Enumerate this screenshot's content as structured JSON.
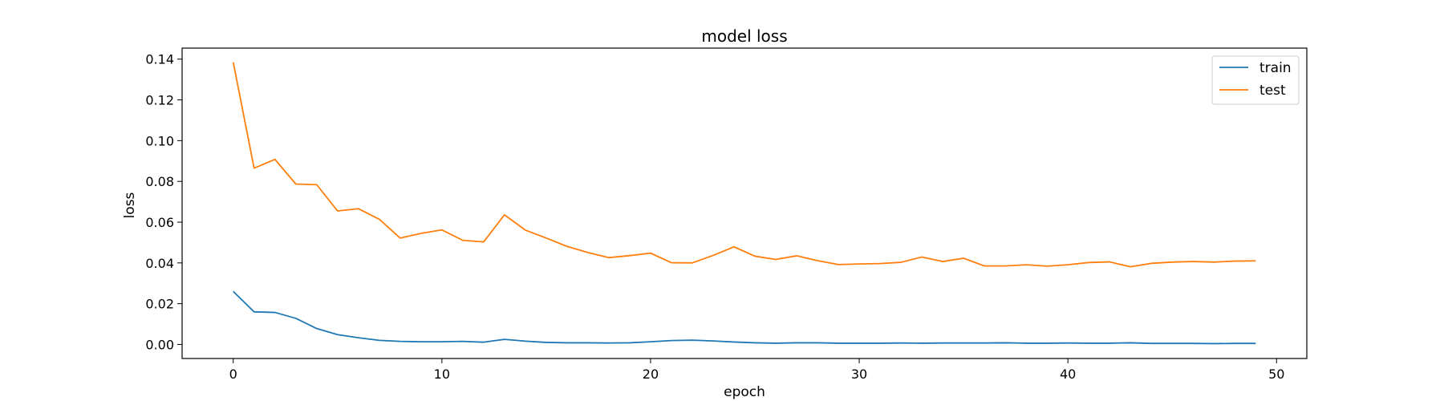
{
  "chart_data": {
    "type": "line",
    "title": "model loss",
    "xlabel": "epoch",
    "ylabel": "loss",
    "xlim": [
      -2.45,
      51.45
    ],
    "ylim": [
      -0.0069,
      0.1454
    ],
    "x_ticks": [
      0,
      10,
      20,
      30,
      40,
      50
    ],
    "y_ticks": [
      0.0,
      0.02,
      0.04,
      0.06,
      0.08,
      0.1,
      0.12,
      0.14
    ],
    "x_tick_labels": [
      "0",
      "10",
      "20",
      "30",
      "40",
      "50"
    ],
    "y_tick_labels": [
      "0.00",
      "0.02",
      "0.04",
      "0.06",
      "0.08",
      "0.10",
      "0.12",
      "0.14"
    ],
    "grid": false,
    "legend_position": "top-right",
    "series": [
      {
        "name": "train",
        "color": "#1f77b4",
        "x": [
          0,
          1,
          2,
          3,
          4,
          5,
          6,
          7,
          8,
          9,
          10,
          11,
          12,
          13,
          14,
          15,
          16,
          17,
          18,
          19,
          20,
          21,
          22,
          23,
          24,
          25,
          26,
          27,
          28,
          29,
          30,
          31,
          32,
          33,
          34,
          35,
          36,
          37,
          38,
          39,
          40,
          41,
          42,
          43,
          44,
          45,
          46,
          47,
          48,
          49
        ],
        "values": [
          0.026,
          0.016,
          0.0157,
          0.0128,
          0.0078,
          0.0048,
          0.0033,
          0.002,
          0.0015,
          0.0013,
          0.0013,
          0.0015,
          0.0011,
          0.0025,
          0.0016,
          0.001,
          0.0008,
          0.0008,
          0.0007,
          0.0008,
          0.0013,
          0.0019,
          0.0021,
          0.0017,
          0.0012,
          0.0008,
          0.0006,
          0.0008,
          0.0008,
          0.0006,
          0.0006,
          0.0006,
          0.0007,
          0.0006,
          0.0007,
          0.0007,
          0.0007,
          0.0008,
          0.0006,
          0.0006,
          0.0007,
          0.0006,
          0.0006,
          0.0008,
          0.0005,
          0.0005,
          0.0005,
          0.0004,
          0.0005,
          0.0005
        ]
      },
      {
        "name": "test",
        "color": "#ff7f0e",
        "x": [
          0,
          1,
          2,
          3,
          4,
          5,
          6,
          7,
          8,
          9,
          10,
          11,
          12,
          13,
          14,
          15,
          16,
          17,
          18,
          19,
          20,
          21,
          22,
          23,
          24,
          25,
          26,
          27,
          28,
          29,
          30,
          31,
          32,
          33,
          34,
          35,
          36,
          37,
          38,
          39,
          40,
          41,
          42,
          43,
          44,
          45,
          46,
          47,
          48,
          49
        ],
        "values": [
          0.1385,
          0.0865,
          0.0908,
          0.0787,
          0.0784,
          0.0655,
          0.0666,
          0.0614,
          0.0522,
          0.0545,
          0.0562,
          0.0511,
          0.0503,
          0.0636,
          0.0561,
          0.0522,
          0.0481,
          0.0451,
          0.0426,
          0.0436,
          0.0448,
          0.0401,
          0.04,
          0.0437,
          0.0479,
          0.0433,
          0.0417,
          0.0435,
          0.0411,
          0.0392,
          0.0395,
          0.0397,
          0.0403,
          0.0429,
          0.0407,
          0.0423,
          0.0385,
          0.0385,
          0.0391,
          0.0384,
          0.0391,
          0.0402,
          0.0405,
          0.0381,
          0.0398,
          0.0404,
          0.0407,
          0.0404,
          0.0409,
          0.041
        ]
      }
    ]
  }
}
